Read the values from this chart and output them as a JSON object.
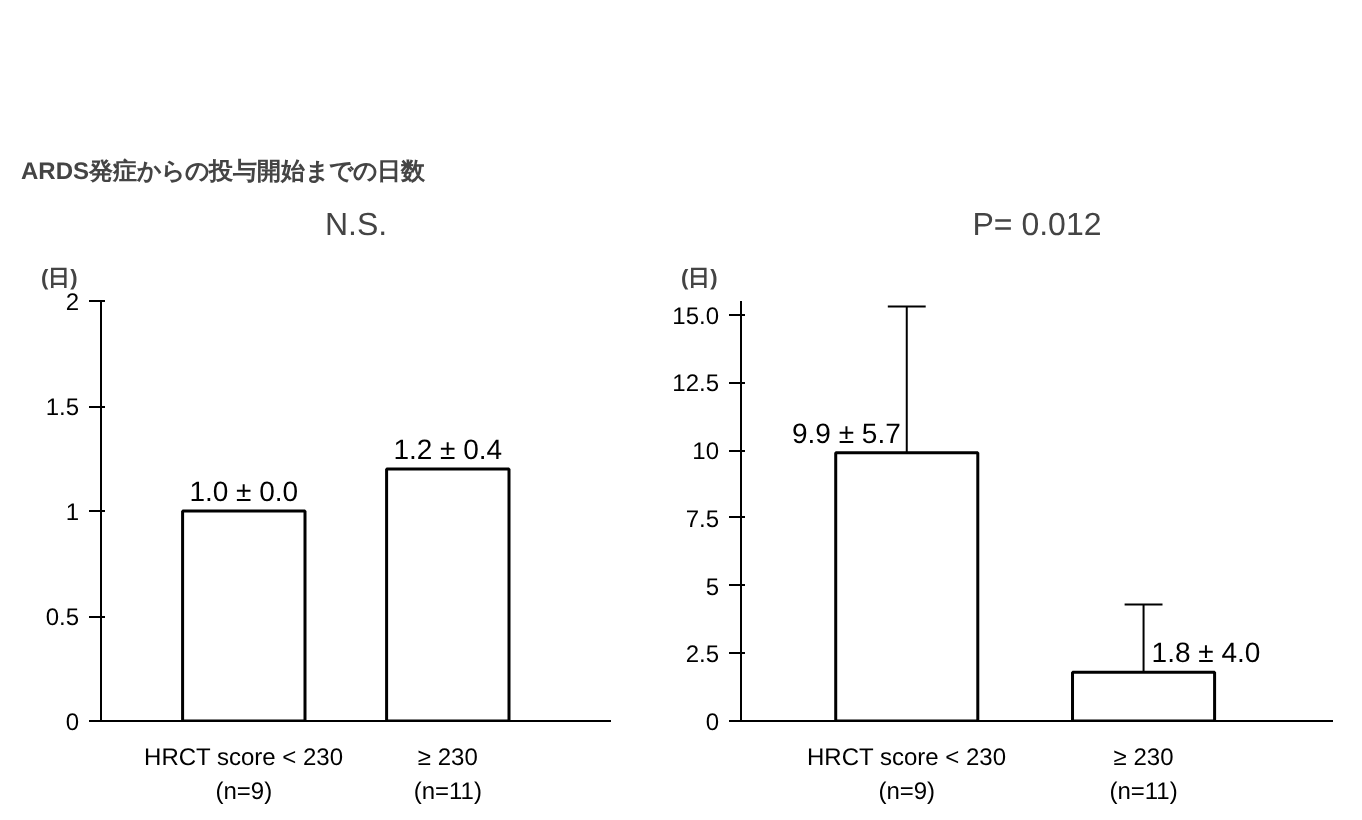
{
  "chart_data": [
    {
      "type": "bar",
      "title": "ARDS発症からの投与開始までの日数",
      "ylabel": "(日)",
      "categories": [
        "HRCT score < 230\n(n=9)",
        "≥ 230\n(n=11)"
      ],
      "values": [
        1.0,
        1.2
      ],
      "value_labels": [
        "1.0 ± 0.0",
        "1.2 ± 0.4"
      ],
      "color": "#ffffff",
      "ylim": [
        0,
        2
      ],
      "yticks": [
        0,
        0.5,
        1,
        1.5,
        2
      ],
      "grid": false,
      "annotations": [
        "N.S."
      ]
    },
    {
      "type": "bar",
      "ylabel": "(日)",
      "categories": [
        "HRCT score < 230\n(n=9)",
        "≥ 230\n(n=11)"
      ],
      "values": [
        9.9,
        1.8
      ],
      "errors": [
        [
          9.9,
          15.3
        ],
        [
          1.8,
          4.3
        ]
      ],
      "value_labels": [
        "9.9 ± 5.7",
        "1.8 ± 4.0"
      ],
      "color": "#ffffff",
      "ylim": [
        0,
        15.5
      ],
      "yticks": [
        0,
        2.5,
        5,
        7.5,
        10,
        12.5,
        {
          "value": 15,
          "label": "15.0"
        }
      ],
      "grid": false,
      "annotations": [
        "P= 0.012"
      ]
    }
  ]
}
